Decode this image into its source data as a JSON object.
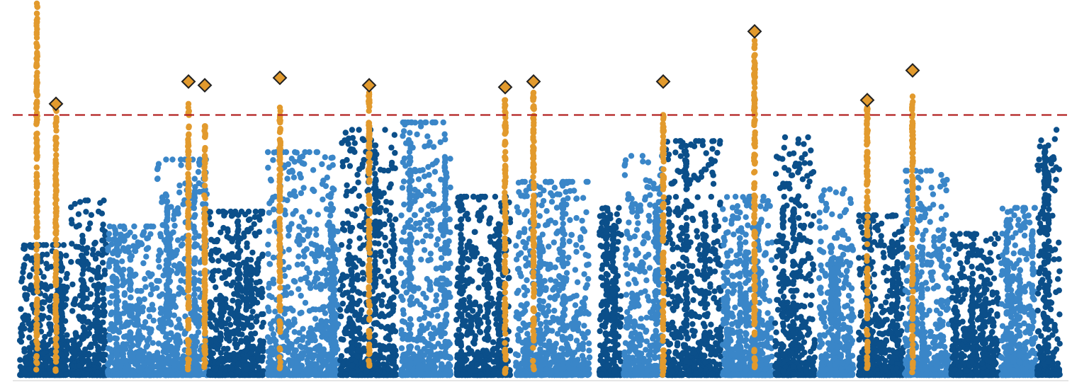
{
  "chart_data": {
    "type": "scatter",
    "subtype": "manhattan",
    "title": "",
    "xlabel": "",
    "ylabel": "",
    "axes_visible": false,
    "grid": false,
    "legend": "none",
    "ylim": [
      0,
      100
    ],
    "threshold": {
      "value": 70,
      "style": "dashed",
      "color": "#b22222"
    },
    "colors": {
      "dark": "#0b4f8a",
      "light": "#3a86c8",
      "highlight": "#e29a2d",
      "diamond_fill": "#e29a2d",
      "diamond_stroke": "#222222",
      "baseline": "#cccccc"
    },
    "blocks": [
      {
        "x0": 28,
        "x1": 95,
        "color": "dark",
        "peak": 35
      },
      {
        "x0": 100,
        "x1": 150,
        "color": "dark",
        "peak": 47
      },
      {
        "x0": 152,
        "x1": 218,
        "color": "light",
        "peak": 40
      },
      {
        "x0": 220,
        "x1": 293,
        "color": "light",
        "peak": 58
      },
      {
        "x0": 295,
        "x1": 372,
        "color": "dark",
        "peak": 44
      },
      {
        "x0": 378,
        "x1": 478,
        "color": "light",
        "peak": 60
      },
      {
        "x0": 480,
        "x1": 560,
        "color": "dark",
        "peak": 66
      },
      {
        "x0": 566,
        "x1": 636,
        "color": "light",
        "peak": 68
      },
      {
        "x0": 644,
        "x1": 720,
        "color": "dark",
        "peak": 48
      },
      {
        "x0": 728,
        "x1": 832,
        "color": "light",
        "peak": 52
      },
      {
        "x0": 846,
        "x1": 878,
        "color": "dark",
        "peak": 45
      },
      {
        "x0": 880,
        "x1": 936,
        "color": "light",
        "peak": 59
      },
      {
        "x0": 940,
        "x1": 1018,
        "color": "dark",
        "peak": 63
      },
      {
        "x0": 1020,
        "x1": 1090,
        "color": "light",
        "peak": 48
      },
      {
        "x0": 1094,
        "x1": 1150,
        "color": "dark",
        "peak": 64
      },
      {
        "x0": 1156,
        "x1": 1205,
        "color": "light",
        "peak": 50
      },
      {
        "x0": 1212,
        "x1": 1275,
        "color": "dark",
        "peak": 43
      },
      {
        "x0": 1277,
        "x1": 1340,
        "color": "light",
        "peak": 55
      },
      {
        "x0": 1342,
        "x1": 1410,
        "color": "dark",
        "peak": 38
      },
      {
        "x0": 1413,
        "x1": 1462,
        "color": "light",
        "peak": 45
      },
      {
        "x0": 1464,
        "x1": 1496,
        "color": "dark",
        "peak": 66
      }
    ],
    "highlight_columns": [
      {
        "x": 52,
        "top": 100
      },
      {
        "x": 79,
        "top": 73
      },
      {
        "x": 266,
        "top": 73
      },
      {
        "x": 289,
        "top": 67
      },
      {
        "x": 395,
        "top": 72
      },
      {
        "x": 521,
        "top": 76
      },
      {
        "x": 713,
        "top": 74
      },
      {
        "x": 753,
        "top": 76
      },
      {
        "x": 936,
        "top": 70
      },
      {
        "x": 1065,
        "top": 90
      },
      {
        "x": 1224,
        "top": 72
      },
      {
        "x": 1288,
        "top": 75
      }
    ],
    "lead_variants": [
      {
        "x": 79,
        "y": 73
      },
      {
        "x": 266,
        "y": 79
      },
      {
        "x": 289,
        "y": 78
      },
      {
        "x": 395,
        "y": 80
      },
      {
        "x": 521,
        "y": 78
      },
      {
        "x": 713,
        "y": 77.5
      },
      {
        "x": 753,
        "y": 79
      },
      {
        "x": 936,
        "y": 79
      },
      {
        "x": 1065,
        "y": 92.5
      },
      {
        "x": 1224,
        "y": 74
      },
      {
        "x": 1288,
        "y": 82
      }
    ]
  }
}
